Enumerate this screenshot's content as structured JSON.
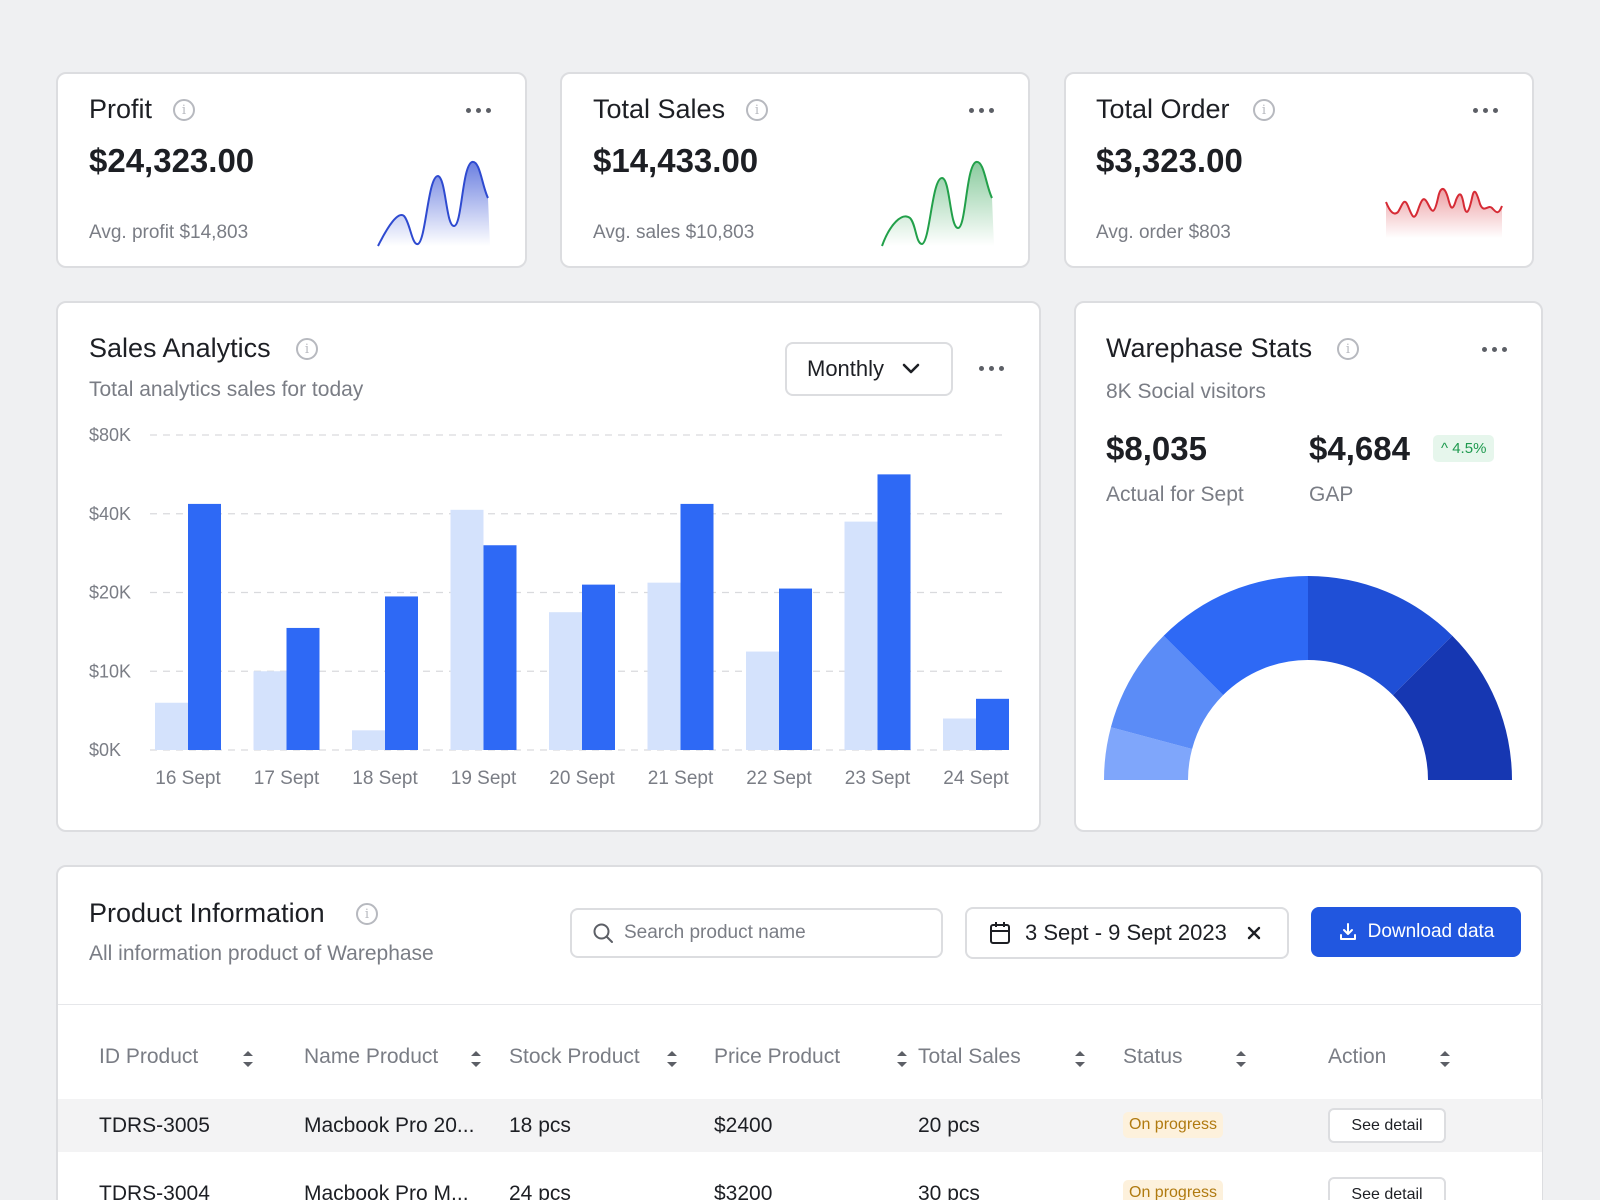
{
  "colors": {
    "accent": "#2e69f5",
    "accent_light": "#d4e2fc",
    "profit_line": "#2e4ad0",
    "sales_line": "#22a04a",
    "order_line": "#d62b35",
    "button": "#2157e0",
    "badge_bg": "#fdf1dc",
    "badge_text": "#b07a10",
    "positive": "#1f9a4f"
  },
  "kpis": [
    {
      "title": "Profit",
      "value": "$24,323.00",
      "sub": "Avg. profit $14,803"
    },
    {
      "title": "Total Sales",
      "value": "$14,433.00",
      "sub": "Avg. sales $10,803"
    },
    {
      "title": "Total Order",
      "value": "$3,323.00",
      "sub": "Avg. order $803"
    }
  ],
  "analytics": {
    "title": "Sales Analytics",
    "subtitle": "Total analytics sales for today",
    "period": "Monthly"
  },
  "chart_data": {
    "type": "bar",
    "categories": [
      "16 Sept",
      "17 Sept",
      "18 Sept",
      "19 Sept",
      "20 Sept",
      "21 Sept",
      "22 Sept",
      "23 Sept",
      "24 Sept"
    ],
    "yticks": [
      "$0K",
      "$10K",
      "$20K",
      "$40K",
      "$80K"
    ],
    "series": [
      {
        "values": [
          6000,
          10000,
          2500,
          42000,
          17500,
          22500,
          12500,
          38000,
          4000
        ]
      },
      {
        "values": [
          45000,
          15500,
          19500,
          32000,
          22000,
          45000,
          21000,
          60000,
          6500
        ]
      }
    ],
    "grid": true
  },
  "warephase": {
    "title": "Warephase Stats",
    "subtitle": "8K Social visitors",
    "actual_value": "$8,035",
    "actual_label": "Actual for Sept",
    "gap_value": "$4,684",
    "gap_label": "GAP",
    "gap_change": "4.5%"
  },
  "product": {
    "title": "Product Information",
    "subtitle": "All information product of Warephase",
    "search_placeholder": "Search product name",
    "date_range": "3 Sept - 9 Sept 2023",
    "download_label": "Download data",
    "columns": [
      "ID Product",
      "Name Product",
      "Stock Product",
      "Price Product",
      "Total Sales",
      "Status",
      "Action"
    ],
    "rows": [
      {
        "id": "TDRS-3005",
        "name": "Macbook Pro 20...",
        "stock": "18 pcs",
        "price": "$2400",
        "sales": "20 pcs",
        "status": "On progress",
        "action": "See detail"
      },
      {
        "id": "TDRS-3004",
        "name": "Macbook Pro M...",
        "stock": "24 pcs",
        "price": "$3200",
        "sales": "30 pcs",
        "status": "On progress",
        "action": "See detail"
      }
    ]
  }
}
